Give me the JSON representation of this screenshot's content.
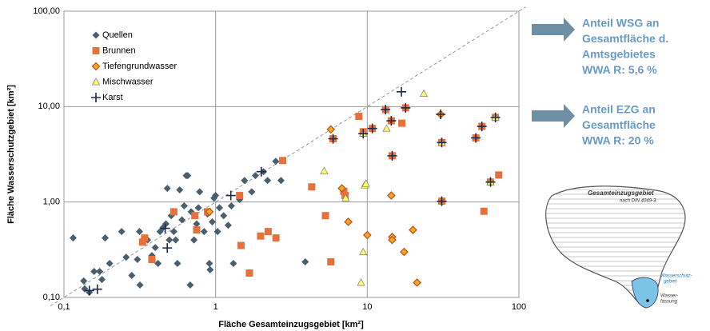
{
  "chart_data": {
    "type": "scatter",
    "x_label": "Fläche Gesamteinzugsgebiet [km²]",
    "y_label": "Fläche Wasserschutzgebiet  [km²]",
    "xscale": "log",
    "yscale": "log",
    "grid": true,
    "diagonal": true,
    "legend": "upper left",
    "xlim": [
      0.1,
      100
    ],
    "ylim": [
      0.1,
      100
    ],
    "xticks": [
      {
        "value": 0.1,
        "label": "0,1"
      },
      1,
      10,
      100
    ],
    "yticks": [
      {
        "value": 0.1,
        "label": "0,10"
      },
      {
        "value": 1,
        "label": "1,00"
      },
      {
        "value": 10,
        "label": "10,00"
      },
      {
        "value": 100,
        "label": "100,00"
      }
    ],
    "series": [
      {
        "name": "Quellen",
        "color": "#4a5f6e",
        "marker": "diamond",
        "x": [
          0.115,
          0.135,
          0.137,
          0.147,
          0.158,
          0.172,
          0.187,
          0.178,
          0.2,
          0.24,
          0.257,
          0.28,
          0.305,
          0.315,
          0.317,
          0.356,
          0.38,
          0.4,
          0.417,
          0.43,
          0.45,
          0.47,
          0.48,
          0.495,
          0.51,
          0.53,
          0.545,
          0.56,
          0.58,
          0.6,
          0.62,
          0.64,
          0.655,
          0.68,
          0.69,
          0.72,
          0.75,
          0.77,
          0.785,
          0.84,
          0.885,
          0.91,
          0.92,
          0.95,
          0.975,
          1.0,
          1.03,
          1.06,
          1.13,
          1.21,
          1.27,
          1.31,
          1.44,
          1.55,
          1.73,
          1.83,
          2.07,
          2.2,
          2.49,
          2.7,
          3.9
        ],
        "values": [
          0.42,
          0.149,
          0.123,
          0.113,
          0.187,
          0.187,
          0.42,
          0.154,
          0.227,
          0.49,
          0.264,
          0.17,
          0.25,
          0.49,
          0.135,
          0.4,
          0.275,
          0.333,
          0.227,
          0.49,
          0.54,
          0.59,
          1.39,
          0.4,
          0.72,
          0.49,
          0.4,
          0.227,
          1.34,
          0.65,
          0.91,
          1.89,
          1.89,
          0.135,
          0.79,
          0.4,
          0.59,
          0.87,
          1.28,
          0.49,
          0.75,
          0.227,
          0.195,
          0.62,
          1.1,
          1.17,
          0.49,
          0.87,
          0.72,
          0.57,
          0.91,
          0.227,
          1.06,
          1.68,
          1.28,
          1.89,
          2.08,
          1.68,
          2.67,
          1.68,
          0.236
        ]
      },
      {
        "name": "Brunnen",
        "color": "#e8703a",
        "marker": "square",
        "x": [
          0.33,
          0.34,
          0.38,
          0.53,
          0.73,
          0.75,
          0.885,
          1.44,
          1.47,
          1.67,
          1.98,
          2.22,
          2.5,
          2.77,
          4.3,
          5.3,
          5.75,
          5.95,
          7.0,
          7.15,
          8.8,
          9.4,
          10.8,
          13.2,
          14.4,
          14.6,
          16.9,
          17.9,
          31,
          31,
          52,
          57,
          58.8,
          65,
          70,
          73.6
        ],
        "values": [
          0.38,
          0.42,
          0.25,
          0.79,
          0.72,
          0.51,
          0.79,
          1.17,
          0.35,
          0.18,
          0.44,
          0.49,
          0.42,
          2.72,
          1.44,
          0.72,
          0.236,
          4.6,
          1.29,
          1.17,
          7.9,
          5.45,
          5.9,
          9.3,
          7.1,
          3.05,
          6.7,
          9.7,
          1.02,
          4.2,
          4.7,
          6.2,
          0.8,
          1.62,
          7.7,
          1.92
        ]
      },
      {
        "name": "Tiefengrundwasser",
        "color": "#f5a623",
        "edge": "#c0501a",
        "marker": "diamond",
        "x": [
          0.91,
          5.75,
          6.8,
          7.5,
          10,
          14.4,
          14.6,
          14.6,
          17.5,
          20,
          21.3,
          30.5
        ],
        "values": [
          0.79,
          5.77,
          1.39,
          0.62,
          0.45,
          1.17,
          0.43,
          0.4,
          0.3,
          0.51,
          0.143,
          8.3
        ]
      },
      {
        "name": "Mischwasser",
        "color": "#ffff66",
        "edge": "#888888",
        "marker": "triangle",
        "x": [
          5.2,
          7.2,
          9.6,
          9.8,
          9.4,
          9.1,
          9.4,
          13.4,
          23.6,
          31,
          65,
          70
        ],
        "values": [
          2.12,
          1.1,
          1.5,
          1.56,
          0.3,
          0.143,
          5.24,
          5.9,
          13.7,
          4.2,
          1.62,
          7.7
        ]
      },
      {
        "name": "Karst",
        "color": "#1b2a48",
        "marker": "plus",
        "x": [
          0.147,
          0.166,
          0.465,
          0.48,
          1.26,
          2.0,
          5.95,
          9.4,
          10.8,
          13.2,
          14.4,
          14.6,
          16.8,
          17.9,
          30.5,
          31,
          31,
          52,
          57,
          65,
          70
        ],
        "values": [
          0.118,
          0.122,
          0.53,
          0.33,
          1.17,
          2.08,
          4.6,
          5.2,
          5.9,
          9.3,
          7.1,
          3.05,
          14.3,
          9.7,
          8.3,
          1.02,
          4.2,
          4.7,
          6.2,
          1.62,
          7.7
        ]
      }
    ]
  },
  "side_panel": {
    "notes": [
      [
        "Anteil WSG an",
        "Gesamtfläche d.",
        "Amtsgebietes",
        "WWA R: 5,6 %"
      ],
      [
        "Anteil EZG an",
        "Gesamtfläche",
        "WWA R: 20 %"
      ]
    ],
    "diagram": {
      "title": "Gesamteinzugsgebiet",
      "subtitle": "nach DIN 4049-3",
      "zone": [
        "Wasserschutz-",
        "gebiet"
      ],
      "well": [
        "Wasser-",
        "fassung"
      ]
    }
  }
}
